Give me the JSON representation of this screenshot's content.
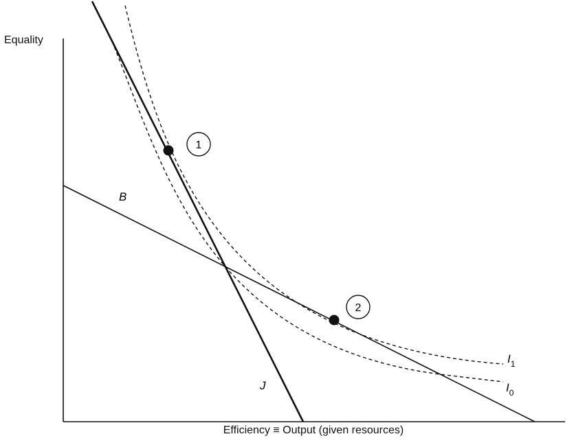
{
  "axes": {
    "y_label": "Equality",
    "x_label": "Efficiency ≡ Output (given resources)"
  },
  "lines": {
    "B": {
      "label": "B"
    },
    "J": {
      "label": "J"
    }
  },
  "curves": {
    "I1": {
      "letter": "I",
      "subscript": "1"
    },
    "I0": {
      "letter": "I",
      "subscript": "0"
    }
  },
  "points": {
    "p1": {
      "label": "1"
    },
    "p2": {
      "label": "2"
    }
  }
}
